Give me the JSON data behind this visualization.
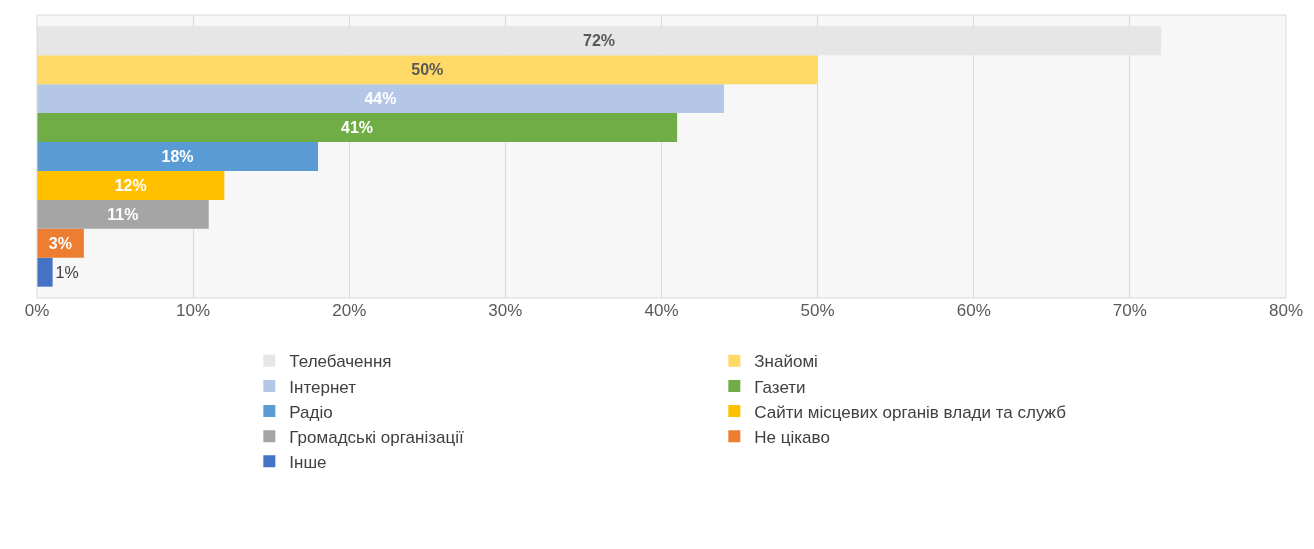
{
  "chart_data": {
    "type": "bar",
    "orientation": "horizontal",
    "categories": [
      null
    ],
    "series": [
      {
        "name": "Телебачення",
        "color": "#e7e6e6",
        "values": [
          72
        ],
        "value_labels": [
          "72%"
        ]
      },
      {
        "name": "Знайомі",
        "color": "#ffd966",
        "values": [
          50
        ],
        "value_labels": [
          "50%"
        ]
      },
      {
        "name": "Інтернет",
        "color": "#b4c7e7",
        "values": [
          44
        ],
        "value_labels": [
          "44%"
        ]
      },
      {
        "name": "Газети",
        "color": "#70ad47",
        "values": [
          41
        ],
        "value_labels": [
          "41%"
        ]
      },
      {
        "name": "Радіо",
        "color": "#5b9bd5",
        "values": [
          18
        ],
        "value_labels": [
          "18%"
        ]
      },
      {
        "name": "Сайти місцевих органів влади та служб",
        "color": "#ffc000",
        "values": [
          12
        ],
        "value_labels": [
          "12%"
        ]
      },
      {
        "name": "Громадські організації",
        "color": "#a5a5a5",
        "values": [
          11
        ],
        "value_labels": [
          "11%"
        ]
      },
      {
        "name": "Не цікаво",
        "color": "#ed7d31",
        "values": [
          3
        ],
        "value_labels": [
          "3%"
        ]
      },
      {
        "name": "Інше",
        "color": "#4472c4",
        "values": [
          1
        ],
        "value_labels": [
          "1%"
        ]
      }
    ],
    "xlim": [
      0,
      80
    ],
    "xticks": [
      {
        "value": 0,
        "label": "0%"
      },
      {
        "value": 10,
        "label": "10%"
      },
      {
        "value": 20,
        "label": "20%"
      },
      {
        "value": 30,
        "label": "30%"
      },
      {
        "value": 40,
        "label": "40%"
      },
      {
        "value": 50,
        "label": "50%"
      },
      {
        "value": 60,
        "label": "60%"
      },
      {
        "value": 70,
        "label": "70%"
      },
      {
        "value": 80,
        "label": "80%"
      }
    ],
    "grid": "x",
    "legend": "bottom"
  }
}
